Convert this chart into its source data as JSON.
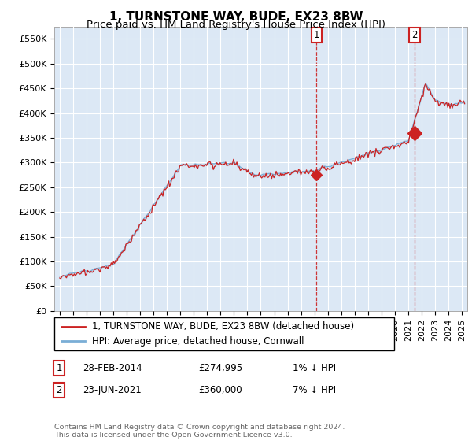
{
  "title": "1, TURNSTONE WAY, BUDE, EX23 8BW",
  "subtitle": "Price paid vs. HM Land Registry's House Price Index (HPI)",
  "ylabel_ticks": [
    "£0",
    "£50K",
    "£100K",
    "£150K",
    "£200K",
    "£250K",
    "£300K",
    "£350K",
    "£400K",
    "£450K",
    "£500K",
    "£550K"
  ],
  "ytick_vals": [
    0,
    50000,
    100000,
    150000,
    200000,
    250000,
    300000,
    350000,
    400000,
    450000,
    500000,
    550000
  ],
  "ylim": [
    0,
    575000
  ],
  "xlim_start": 1994.6,
  "xlim_end": 2025.4,
  "hpi_color": "#7aaed6",
  "price_color": "#cc2222",
  "vline_color": "#cc2222",
  "background_color": "#dce8f5",
  "legend_label_price": "1, TURNSTONE WAY, BUDE, EX23 8BW (detached house)",
  "legend_label_hpi": "HPI: Average price, detached house, Cornwall",
  "annotation1_date": 2014.16,
  "annotation1_price": 274995,
  "annotation2_date": 2021.47,
  "annotation2_price": 360000,
  "footer": "Contains HM Land Registry data © Crown copyright and database right 2024.\nThis data is licensed under the Open Government Licence v3.0.",
  "title_fontsize": 11,
  "subtitle_fontsize": 9.5,
  "tick_fontsize": 8,
  "legend_fontsize": 8.5
}
